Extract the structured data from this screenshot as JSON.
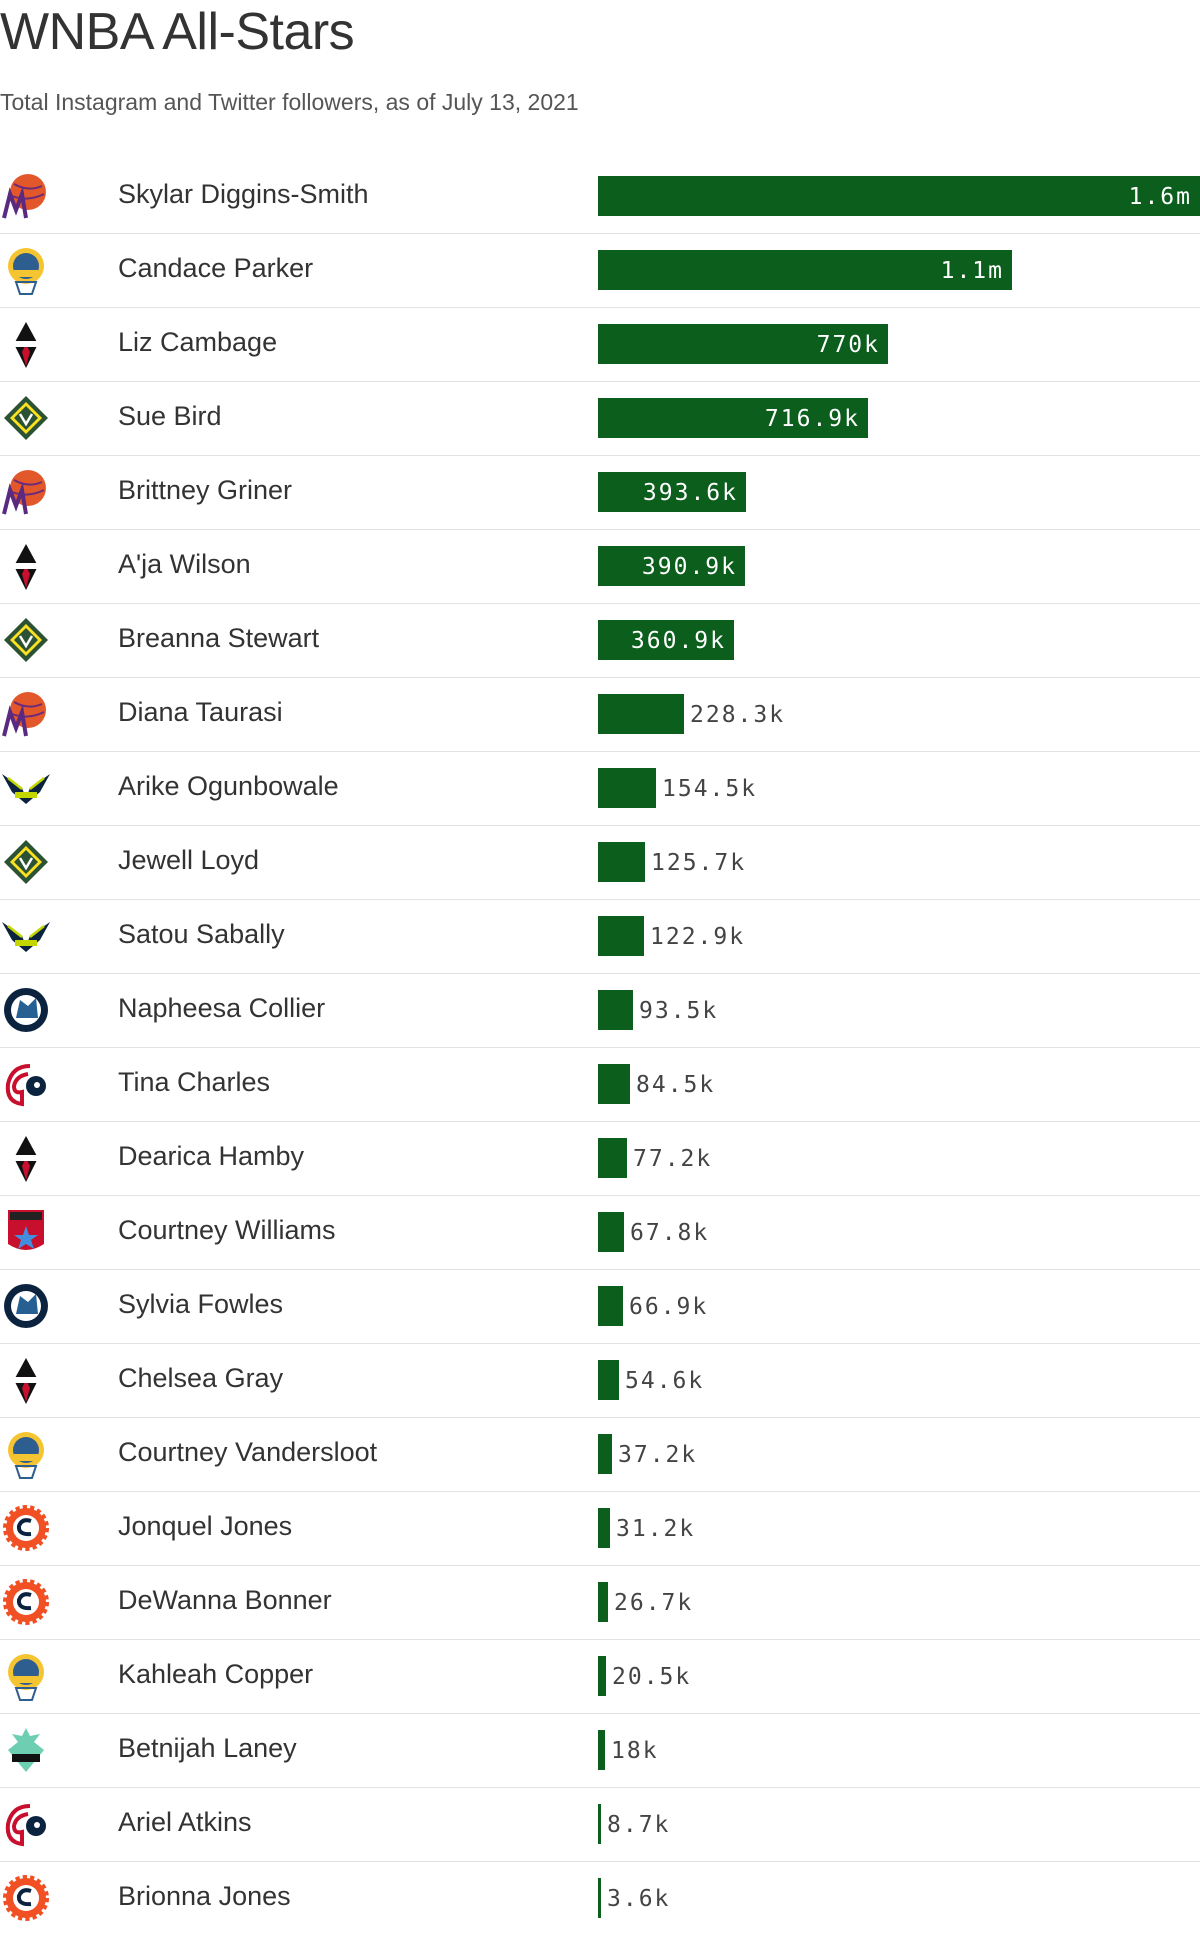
{
  "title": "WNBA All-Stars",
  "subtitle": "Total Instagram and Twitter followers, as of July 13, 2021",
  "colors": {
    "bar": "#0b5e1c",
    "label_inside": "#ffffff",
    "label_outside": "#444444",
    "divider": "#e2e2e2",
    "mercury": "#e3582a",
    "sky": "#2e5d8f",
    "aces": "#111111",
    "storm": "#2c5234",
    "wings": "#0c2340",
    "lynx": "#266092",
    "mystics": "#c8102e",
    "dream": "#c8102e",
    "sun": "#f05023",
    "liberty": "#6eceb2"
  },
  "chart_data": {
    "type": "bar",
    "orientation": "horizontal",
    "title": "WNBA All-Stars",
    "subtitle": "Total Instagram and Twitter followers, as of July 13, 2021",
    "xlim": [
      0,
      1600000
    ],
    "categories": [
      "Skylar Diggins-Smith",
      "Candace Parker",
      "Liz Cambage",
      "Sue Bird",
      "Brittney Griner",
      "A'ja Wilson",
      "Breanna Stewart",
      "Diana Taurasi",
      "Arike Ogunbowale",
      "Jewell Loyd",
      "Satou Sabally",
      "Napheesa Collier",
      "Tina Charles",
      "Dearica Hamby",
      "Courtney Williams",
      "Sylvia Fowles",
      "Chelsea Gray",
      "Courtney Vandersloot",
      "Jonquel Jones",
      "DeWanna Bonner",
      "Kahleah Copper",
      "Betnijah Laney",
      "Ariel Atkins",
      "Brionna Jones"
    ],
    "values": [
      1600000,
      1100000,
      770000,
      716900,
      393600,
      390900,
      360900,
      228300,
      154500,
      125700,
      122900,
      93500,
      84500,
      77200,
      67800,
      66900,
      54600,
      37200,
      31200,
      26700,
      20500,
      18000,
      8700,
      3600
    ],
    "labels": [
      "1.6m",
      "1.1m",
      "770k",
      "716.9k",
      "393.6k",
      "390.9k",
      "360.9k",
      "228.3k",
      "154.5k",
      "125.7k",
      "122.9k",
      "93.5k",
      "84.5k",
      "77.2k",
      "67.8k",
      "66.9k",
      "54.6k",
      "37.2k",
      "31.2k",
      "26.7k",
      "20.5k",
      "18k",
      "8.7k",
      "3.6k"
    ],
    "team_logos": [
      "mercury-icon",
      "sky-icon",
      "aces-icon",
      "storm-icon",
      "mercury-icon",
      "aces-icon",
      "storm-icon",
      "mercury-icon",
      "wings-icon",
      "storm-icon",
      "wings-icon",
      "lynx-icon",
      "mystics-icon",
      "aces-icon",
      "dream-icon",
      "lynx-icon",
      "aces-icon",
      "sky-icon",
      "sun-icon",
      "sun-icon",
      "sky-icon",
      "liberty-icon",
      "mystics-icon",
      "sun-icon"
    ]
  }
}
